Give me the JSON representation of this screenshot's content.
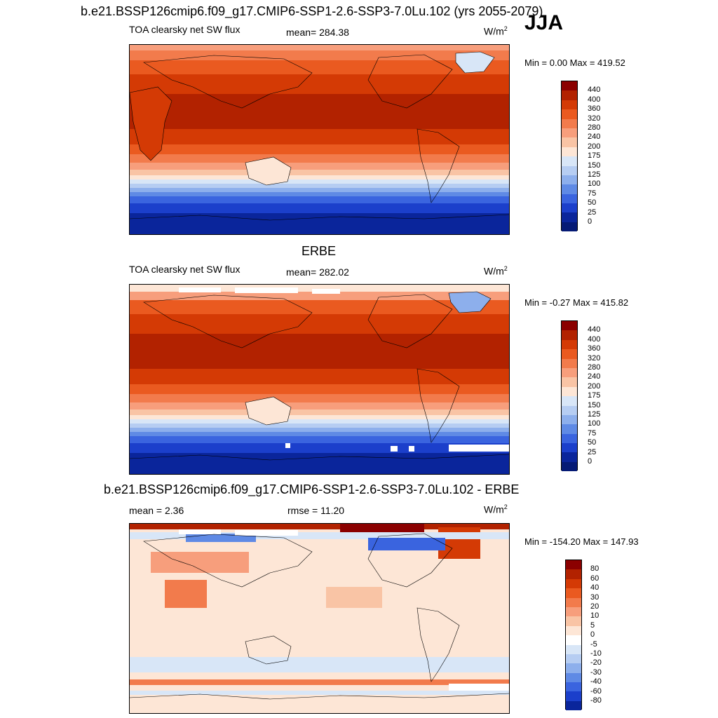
{
  "figure": {
    "title": "b.e21.BSSP126cmip6.f09_g17.CMIP6-SSP1-2.6-SSP3-7.0Lu.102 (yrs 2055-2079)",
    "season": "JJA"
  },
  "panel1": {
    "left_label": "TOA clearsky net SW flux",
    "mean_text": "mean= 284.38",
    "units_base": "W/m",
    "units_exp": "2",
    "minmax_text": "Min =   0.00 Max = 419.52",
    "colorbar": {
      "labels": [
        "440",
        "400",
        "360",
        "320",
        "280",
        "240",
        "200",
        "175",
        "150",
        "125",
        "100",
        "75",
        "50",
        "25",
        "0"
      ],
      "colors": [
        "#8b0000",
        "#b22200",
        "#d43a05",
        "#ea5a20",
        "#f27b4c",
        "#f79e7c",
        "#f9c4a5",
        "#fde6d6",
        "#d8e6f7",
        "#b6cdf2",
        "#8dafec",
        "#5f8ae5",
        "#3a64df",
        "#1b3fcb",
        "#0a259b",
        "#051a75"
      ]
    }
  },
  "panel2": {
    "subtitle": "ERBE",
    "left_label": "TOA clearsky net SW flux",
    "mean_text": "mean= 282.02",
    "units_base": "W/m",
    "units_exp": "2",
    "minmax_text": "Min =  -0.27 Max = 415.82",
    "colorbar": {
      "labels": [
        "440",
        "400",
        "360",
        "320",
        "280",
        "240",
        "200",
        "175",
        "150",
        "125",
        "100",
        "75",
        "50",
        "25",
        "0"
      ],
      "colors": [
        "#8b0000",
        "#b22200",
        "#d43a05",
        "#ea5a20",
        "#f27b4c",
        "#f79e7c",
        "#f9c4a5",
        "#fde6d6",
        "#d8e6f7",
        "#b6cdf2",
        "#8dafec",
        "#5f8ae5",
        "#3a64df",
        "#1b3fcb",
        "#0a259b",
        "#051a75"
      ]
    }
  },
  "panel3": {
    "subtitle": "b.e21.BSSP126cmip6.f09_g17.CMIP6-SSP1-2.6-SSP3-7.0Lu.102 - ERBE",
    "mean_text": "mean =   2.36",
    "rmse_text": "rmse =  11.20",
    "units_base": "W/m",
    "units_exp": "2",
    "minmax_text": "Min = -154.20 Max = 147.93",
    "colorbar": {
      "labels": [
        "80",
        "60",
        "40",
        "30",
        "20",
        "10",
        "5",
        "0",
        "-5",
        "-10",
        "-20",
        "-30",
        "-40",
        "-60",
        "-80"
      ],
      "colors": [
        "#8b0000",
        "#b22200",
        "#d43a05",
        "#ea5a20",
        "#f27b4c",
        "#f79e7c",
        "#f9c4a5",
        "#fde6d6",
        "#ffffff",
        "#d8e6f7",
        "#b6cdf2",
        "#8dafec",
        "#5f8ae5",
        "#3a64df",
        "#1b3fcb",
        "#0a259b"
      ]
    }
  }
}
